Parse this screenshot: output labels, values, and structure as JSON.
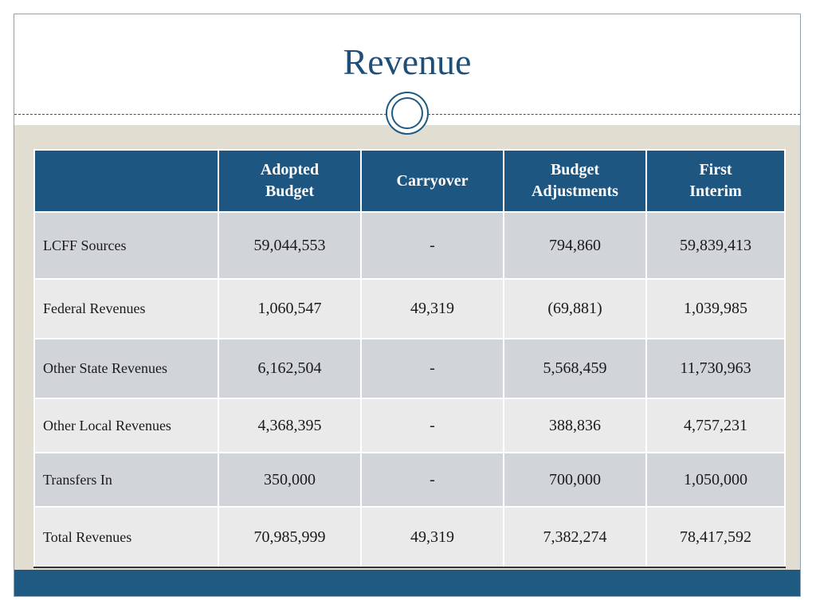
{
  "slide": {
    "title": "Revenue"
  },
  "table": {
    "headers": [
      {
        "lines": []
      },
      {
        "lines": [
          "Adopted",
          "Budget"
        ]
      },
      {
        "lines": [
          "Carryover"
        ]
      },
      {
        "lines": [
          "Budget",
          "Adjustments"
        ]
      },
      {
        "lines": [
          "First",
          "Interim"
        ]
      }
    ],
    "rows": [
      {
        "label": "LCFF Sources",
        "adopted": "59,044,553",
        "carryover": "-",
        "adjustments": "794,860",
        "interim": "59,839,413"
      },
      {
        "label": "Federal Revenues",
        "adopted": "1,060,547",
        "carryover": "49,319",
        "adjustments": "(69,881)",
        "interim": "1,039,985"
      },
      {
        "label": "Other State Revenues",
        "adopted": "6,162,504",
        "carryover": "-",
        "adjustments": "5,568,459",
        "interim": "11,730,963"
      },
      {
        "label": "Other Local Revenues",
        "adopted": "4,368,395",
        "carryover": "-",
        "adjustments": "388,836",
        "interim": "4,757,231"
      },
      {
        "label": "Transfers In",
        "adopted": "350,000",
        "carryover": "-",
        "adjustments": "700,000",
        "interim": "1,050,000"
      },
      {
        "label": "Total Revenues",
        "adopted": "70,985,999",
        "carryover": "49,319",
        "adjustments": "7,382,274",
        "interim": "78,417,592"
      }
    ]
  },
  "colors": {
    "header_bg": "#1c5681",
    "title_color": "#1f4e79",
    "content_bg": "#e1ddd0",
    "footer_bg": "#1f5a82"
  }
}
